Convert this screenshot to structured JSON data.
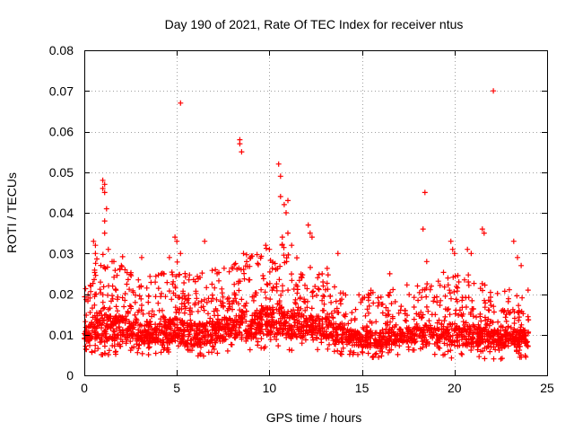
{
  "chart_data": {
    "type": "scatter",
    "title": "Day 190 of 2021, Rate Of TEC Index for receiver ntus",
    "xlabel": "GPS time / hours",
    "ylabel": "ROTI / TECUs",
    "xlim": [
      0,
      25
    ],
    "ylim": [
      0,
      0.08
    ],
    "xticks": [
      0,
      5,
      10,
      15,
      20,
      25
    ],
    "xtick_labels": [
      "0",
      "5",
      "10",
      "15",
      "20",
      "25"
    ],
    "yticks": [
      0,
      0.01,
      0.02,
      0.03,
      0.04,
      0.05,
      0.06,
      0.07,
      0.08
    ],
    "ytick_labels": [
      "0",
      "0.01",
      "0.02",
      "0.03",
      "0.04",
      "0.05",
      "0.06",
      "0.07",
      "0.08"
    ],
    "grid": true,
    "marker": "+",
    "color": "#ff0000",
    "series": [
      {
        "name": "ROTI",
        "envelope": [
          {
            "x": 0.0,
            "low": 0.005,
            "high": 0.015
          },
          {
            "x": 0.5,
            "low": 0.005,
            "high": 0.024
          },
          {
            "x": 1.0,
            "low": 0.005,
            "high": 0.026
          },
          {
            "x": 1.5,
            "low": 0.005,
            "high": 0.022
          },
          {
            "x": 2.0,
            "low": 0.005,
            "high": 0.024
          },
          {
            "x": 2.5,
            "low": 0.006,
            "high": 0.02
          },
          {
            "x": 3.0,
            "low": 0.005,
            "high": 0.018
          },
          {
            "x": 4.0,
            "low": 0.005,
            "high": 0.019
          },
          {
            "x": 5.0,
            "low": 0.005,
            "high": 0.022
          },
          {
            "x": 6.0,
            "low": 0.004,
            "high": 0.019
          },
          {
            "x": 7.0,
            "low": 0.005,
            "high": 0.02
          },
          {
            "x": 8.0,
            "low": 0.006,
            "high": 0.021
          },
          {
            "x": 8.5,
            "low": 0.006,
            "high": 0.025
          },
          {
            "x": 9.0,
            "low": 0.006,
            "high": 0.024
          },
          {
            "x": 10.0,
            "low": 0.006,
            "high": 0.026
          },
          {
            "x": 10.5,
            "low": 0.007,
            "high": 0.028
          },
          {
            "x": 11.0,
            "low": 0.006,
            "high": 0.025
          },
          {
            "x": 12.0,
            "low": 0.006,
            "high": 0.022
          },
          {
            "x": 13.0,
            "low": 0.006,
            "high": 0.021
          },
          {
            "x": 14.0,
            "low": 0.005,
            "high": 0.016
          },
          {
            "x": 15.0,
            "low": 0.004,
            "high": 0.015
          },
          {
            "x": 16.0,
            "low": 0.004,
            "high": 0.015
          },
          {
            "x": 17.0,
            "low": 0.005,
            "high": 0.016
          },
          {
            "x": 18.0,
            "low": 0.005,
            "high": 0.017
          },
          {
            "x": 19.0,
            "low": 0.005,
            "high": 0.019
          },
          {
            "x": 20.0,
            "low": 0.004,
            "high": 0.02
          },
          {
            "x": 21.0,
            "low": 0.004,
            "high": 0.019
          },
          {
            "x": 22.0,
            "low": 0.004,
            "high": 0.016
          },
          {
            "x": 23.0,
            "low": 0.004,
            "high": 0.016
          },
          {
            "x": 24.0,
            "low": 0.004,
            "high": 0.016
          }
        ],
        "outliers": [
          {
            "x": 0.5,
            "y": 0.033
          },
          {
            "x": 0.6,
            "y": 0.03
          },
          {
            "x": 0.6,
            "y": 0.032
          },
          {
            "x": 1.0,
            "y": 0.048
          },
          {
            "x": 1.0,
            "y": 0.046
          },
          {
            "x": 1.1,
            "y": 0.047
          },
          {
            "x": 1.1,
            "y": 0.045
          },
          {
            "x": 1.1,
            "y": 0.038
          },
          {
            "x": 1.1,
            "y": 0.035
          },
          {
            "x": 1.2,
            "y": 0.041
          },
          {
            "x": 1.3,
            "y": 0.031
          },
          {
            "x": 1.6,
            "y": 0.028
          },
          {
            "x": 2.0,
            "y": 0.027
          },
          {
            "x": 2.2,
            "y": 0.026
          },
          {
            "x": 3.1,
            "y": 0.029
          },
          {
            "x": 4.3,
            "y": 0.025
          },
          {
            "x": 4.6,
            "y": 0.029
          },
          {
            "x": 4.9,
            "y": 0.034
          },
          {
            "x": 5.0,
            "y": 0.033
          },
          {
            "x": 5.2,
            "y": 0.03
          },
          {
            "x": 5.2,
            "y": 0.067
          },
          {
            "x": 6.5,
            "y": 0.033
          },
          {
            "x": 8.4,
            "y": 0.058
          },
          {
            "x": 8.4,
            "y": 0.057
          },
          {
            "x": 8.5,
            "y": 0.055
          },
          {
            "x": 8.6,
            "y": 0.03
          },
          {
            "x": 9.8,
            "y": 0.032
          },
          {
            "x": 10.0,
            "y": 0.031
          },
          {
            "x": 10.5,
            "y": 0.052
          },
          {
            "x": 10.6,
            "y": 0.049
          },
          {
            "x": 10.6,
            "y": 0.044
          },
          {
            "x": 10.8,
            "y": 0.042
          },
          {
            "x": 10.9,
            "y": 0.04
          },
          {
            "x": 11.0,
            "y": 0.043
          },
          {
            "x": 10.7,
            "y": 0.034
          },
          {
            "x": 11.0,
            "y": 0.035
          },
          {
            "x": 11.2,
            "y": 0.032
          },
          {
            "x": 12.1,
            "y": 0.037
          },
          {
            "x": 12.2,
            "y": 0.035
          },
          {
            "x": 12.3,
            "y": 0.034
          },
          {
            "x": 13.7,
            "y": 0.03
          },
          {
            "x": 16.5,
            "y": 0.025
          },
          {
            "x": 18.0,
            "y": 0.022
          },
          {
            "x": 18.4,
            "y": 0.045
          },
          {
            "x": 18.3,
            "y": 0.036
          },
          {
            "x": 18.5,
            "y": 0.028
          },
          {
            "x": 19.8,
            "y": 0.033
          },
          {
            "x": 19.9,
            "y": 0.031
          },
          {
            "x": 20.0,
            "y": 0.03
          },
          {
            "x": 20.7,
            "y": 0.031
          },
          {
            "x": 20.9,
            "y": 0.03
          },
          {
            "x": 21.5,
            "y": 0.036
          },
          {
            "x": 21.6,
            "y": 0.035
          },
          {
            "x": 22.1,
            "y": 0.07
          },
          {
            "x": 23.2,
            "y": 0.033
          },
          {
            "x": 23.4,
            "y": 0.029
          },
          {
            "x": 23.6,
            "y": 0.027
          }
        ]
      }
    ]
  }
}
